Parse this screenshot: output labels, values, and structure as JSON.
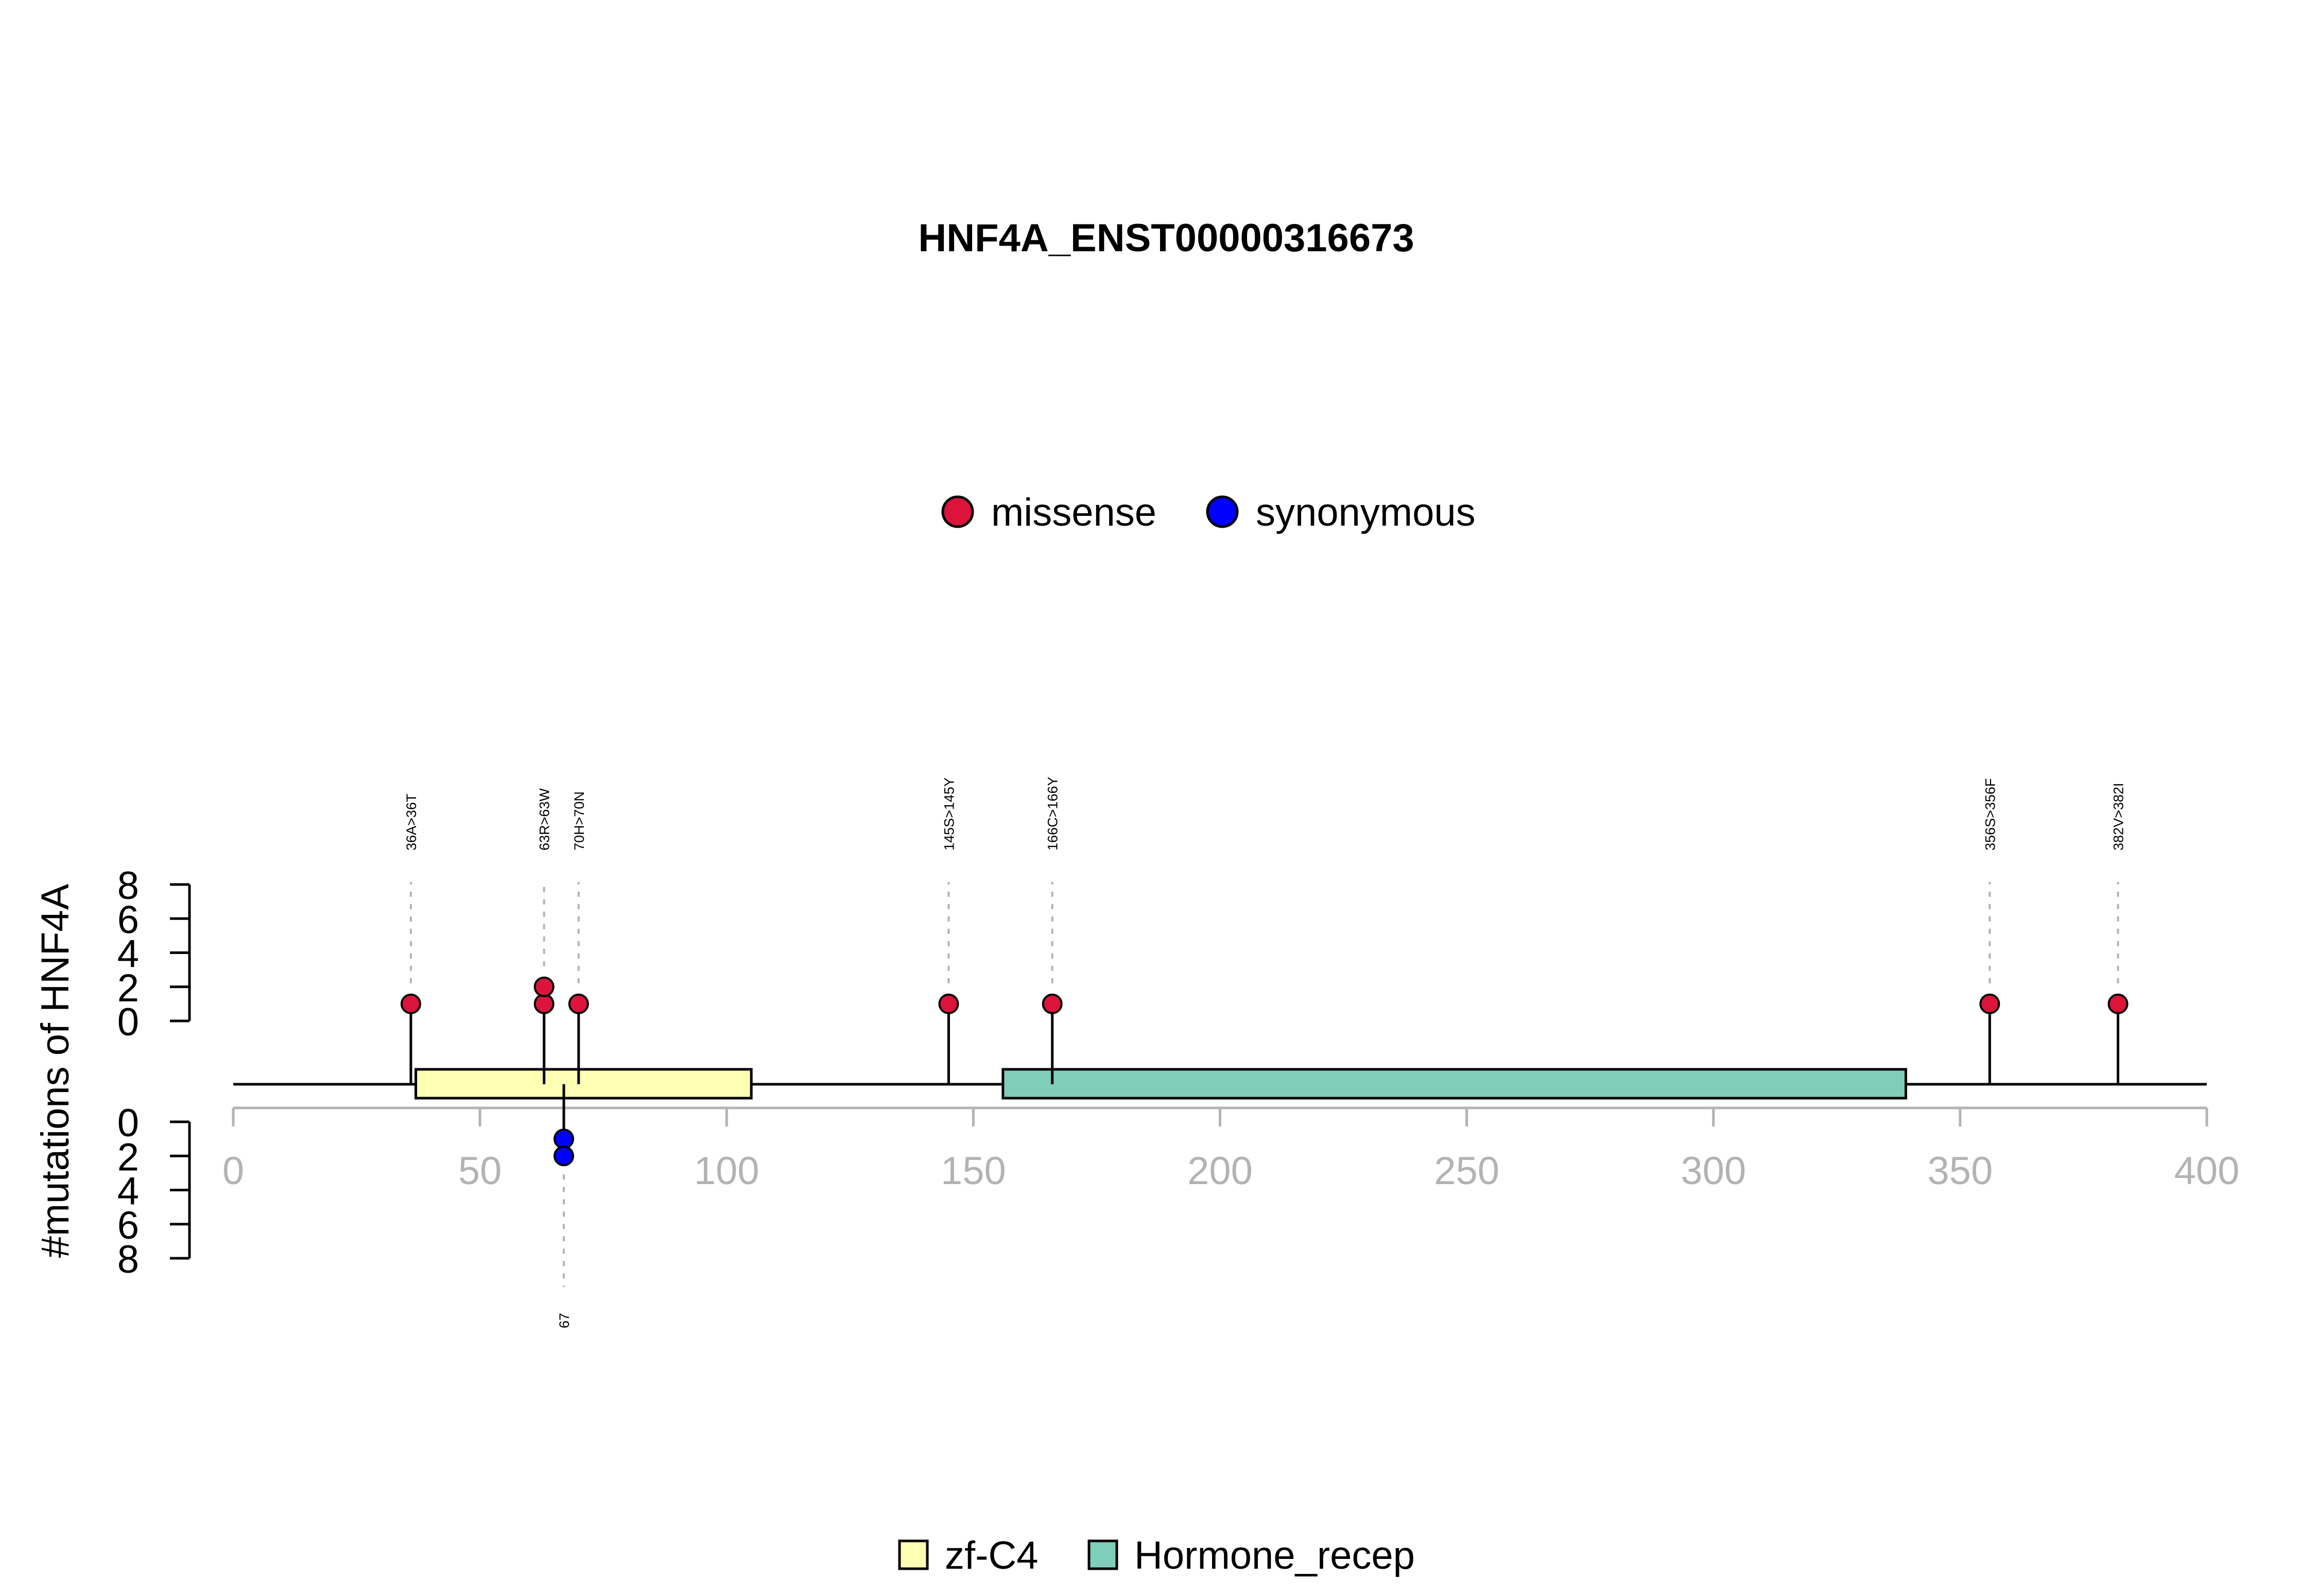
{
  "chart_data": {
    "type": "lollipop",
    "title": "HNF4A_ENST00000316673",
    "ylabel": "#mutations of HNF4A",
    "xlim": [
      0,
      400
    ],
    "xticks": [
      "0",
      "50",
      "100",
      "150",
      "200",
      "250",
      "300",
      "350",
      "400"
    ],
    "yticks_top": [
      "0",
      "2",
      "4",
      "6",
      "8"
    ],
    "yticks_bottom": [
      "0",
      "2",
      "4",
      "6",
      "8"
    ],
    "ylim": [
      0,
      8
    ],
    "legend_mutations": {
      "placement": "top-center",
      "items": [
        {
          "label": "missense",
          "color": "#DC143C"
        },
        {
          "label": "synonymous",
          "color": "#0000FF"
        }
      ]
    },
    "legend_domains": {
      "placement": "bottom-center",
      "items": [
        {
          "label": "zf-C4",
          "color": "#FFFFB3"
        },
        {
          "label": "Hormone_recep",
          "color": "#7FCDBB"
        }
      ]
    },
    "domains": [
      {
        "name": "zf-C4",
        "start": 37,
        "end": 105,
        "color": "#FFFFB3"
      },
      {
        "name": "Hormone_recep",
        "start": 156,
        "end": 339,
        "color": "#7FCDBB"
      }
    ],
    "mutations_top": [
      {
        "position": 36,
        "label": "36A>36T",
        "count": 1,
        "type": "missense"
      },
      {
        "position": 63,
        "label": "63R>63W",
        "count": 2,
        "type": "missense"
      },
      {
        "position": 70,
        "label": "70H>70N",
        "count": 1,
        "type": "missense"
      },
      {
        "position": 145,
        "label": "145S>145Y",
        "count": 1,
        "type": "missense"
      },
      {
        "position": 166,
        "label": "166C>166Y",
        "count": 1,
        "type": "missense"
      },
      {
        "position": 356,
        "label": "356S>356F",
        "count": 1,
        "type": "missense"
      },
      {
        "position": 382,
        "label": "382V>382I",
        "count": 1,
        "type": "missense"
      }
    ],
    "mutations_bottom": [
      {
        "position": 67,
        "label": "67",
        "count": 2,
        "type": "synonymous"
      }
    ]
  }
}
